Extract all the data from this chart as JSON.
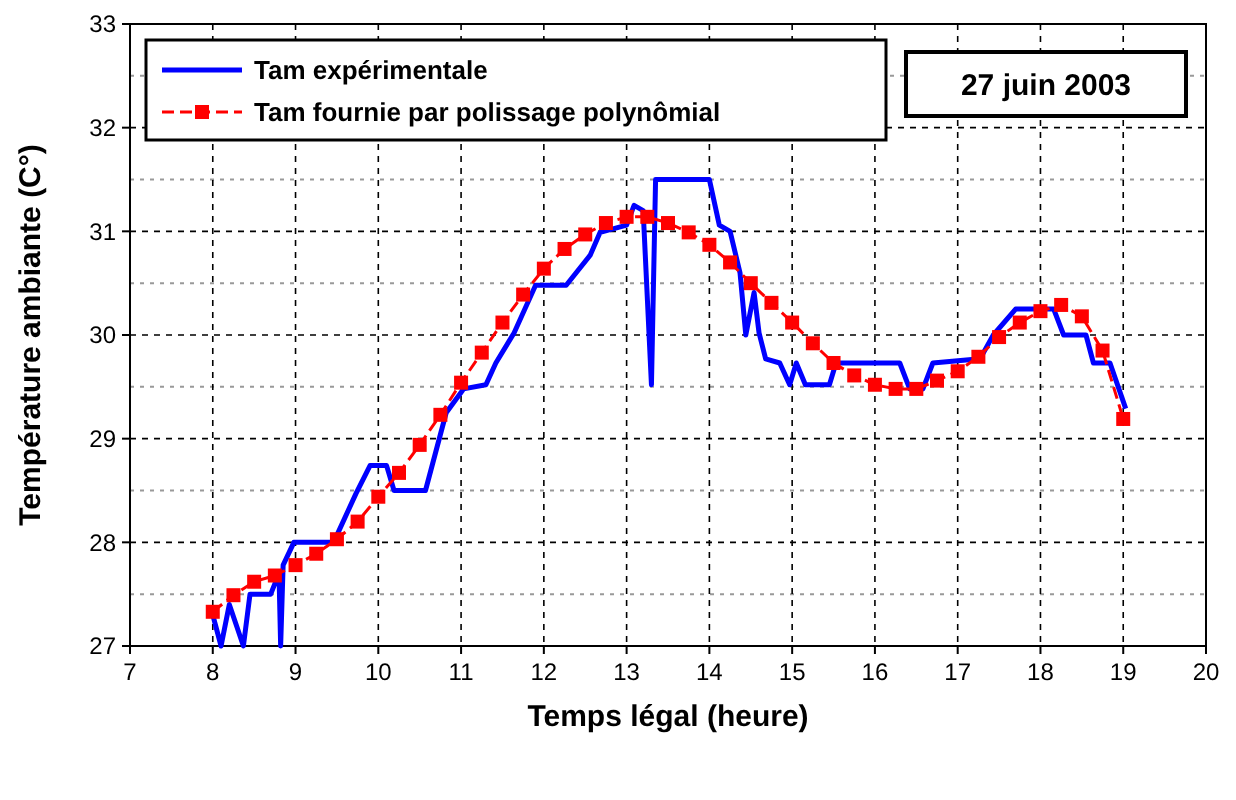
{
  "chart_data": {
    "type": "line",
    "xlabel": "Temps légal (heure)",
    "ylabel": "Température ambiante (C°)",
    "annotations": [
      "27 juin 2003"
    ],
    "xlim": [
      7,
      20
    ],
    "xticks": [
      7,
      8,
      9,
      10,
      11,
      12,
      13,
      14,
      15,
      16,
      17,
      18,
      19,
      20
    ],
    "ylim": [
      27,
      33
    ],
    "yticks": [
      27,
      28,
      29,
      30,
      31,
      32,
      33
    ],
    "grid": true,
    "legend": "top left",
    "series": [
      {
        "name": "Tam expérimentale",
        "color": "#0000ff",
        "marker": "none",
        "x": [
          8.0,
          8.1,
          8.2,
          8.37,
          8.45,
          8.7,
          8.8,
          8.82,
          8.85,
          8.98,
          9.46,
          9.73,
          9.9,
          10.1,
          10.19,
          10.57,
          10.82,
          11.03,
          11.3,
          11.42,
          11.64,
          11.9,
          12.27,
          12.56,
          12.68,
          13.0,
          13.09,
          13.2,
          13.3,
          13.35,
          14.0,
          14.12,
          14.25,
          14.37,
          14.44,
          14.54,
          14.6,
          14.68,
          14.85,
          14.97,
          15.05,
          15.16,
          15.45,
          15.53,
          16.3,
          16.42,
          16.58,
          16.7,
          17.27,
          17.43,
          17.7,
          18.16,
          18.28,
          18.55,
          18.64,
          18.84,
          19.03
        ],
        "values": [
          27.3,
          27.0,
          27.4,
          27.0,
          27.5,
          27.5,
          27.7,
          27.0,
          27.78,
          28.0,
          28.0,
          28.47,
          28.74,
          28.74,
          28.5,
          28.5,
          29.25,
          29.48,
          29.52,
          29.73,
          30.02,
          30.48,
          30.48,
          30.77,
          30.99,
          31.06,
          31.25,
          31.2,
          29.52,
          31.5,
          31.5,
          31.06,
          31.0,
          30.6,
          30.0,
          30.41,
          30.02,
          29.77,
          29.73,
          29.52,
          29.73,
          29.52,
          29.52,
          29.73,
          29.73,
          29.48,
          29.48,
          29.73,
          29.77,
          30.0,
          30.25,
          30.25,
          30.0,
          30.0,
          29.73,
          29.73,
          29.29
        ]
      },
      {
        "name": "Tam fournie par polissage polynômial",
        "color": "#ff0000",
        "marker": "square",
        "line_style": "dashed",
        "x": [
          8,
          8.25,
          8.5,
          8.75,
          9,
          9.25,
          9.5,
          9.75,
          10,
          10.25,
          10.5,
          10.75,
          11,
          11.25,
          11.5,
          11.75,
          12,
          12.25,
          12.5,
          12.75,
          13,
          13.25,
          13.5,
          13.75,
          14,
          14.25,
          14.5,
          14.75,
          15,
          15.25,
          15.5,
          15.75,
          16,
          16.25,
          16.5,
          16.75,
          17,
          17.25,
          17.5,
          17.75,
          18,
          18.25,
          18.5,
          18.75,
          19
        ],
        "values": [
          27.33,
          27.49,
          27.62,
          27.68,
          27.78,
          27.89,
          28.03,
          28.2,
          28.44,
          28.67,
          28.94,
          29.23,
          29.54,
          29.83,
          30.12,
          30.39,
          30.64,
          30.83,
          30.97,
          31.08,
          31.14,
          31.14,
          31.08,
          30.99,
          30.87,
          30.7,
          30.5,
          30.31,
          30.12,
          29.92,
          29.73,
          29.61,
          29.52,
          29.48,
          29.48,
          29.56,
          29.65,
          29.79,
          29.98,
          30.12,
          30.23,
          30.29,
          30.18,
          29.85,
          29.19
        ]
      }
    ]
  }
}
